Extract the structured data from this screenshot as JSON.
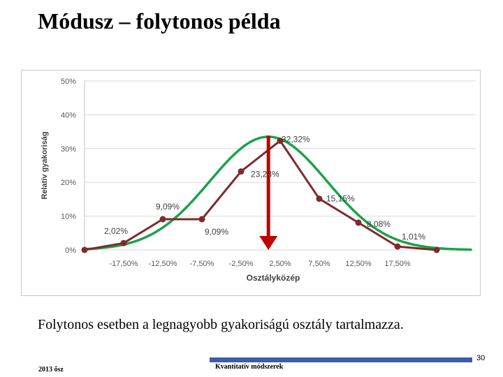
{
  "slide": {
    "title": "Módusz – folytonos példa",
    "caption": "Folytonos esetben a legnagyobb gyakoriságú osztály tartalmazza.",
    "page_number": "30",
    "footer_left": "2013 ősz",
    "footer_center": "Kvantitatív módszerek",
    "accent_color": "#3b5ea8"
  },
  "chart_data": {
    "type": "line",
    "ylabel": "Relatív gyakoriság",
    "xlabel": "Osztályközép",
    "ylim": [
      0,
      50
    ],
    "yticks": [
      "0%",
      "10%",
      "20%",
      "30%",
      "40%",
      "50%"
    ],
    "categories": [
      "-17,50%",
      "-12,50%",
      "-7,50%",
      "-2,50%",
      "2,50%",
      "7,50%",
      "12,50%",
      "17,50%"
    ],
    "grid": true,
    "legend": "none",
    "series": [
      {
        "color": "#7b2c2c",
        "points": [
          {
            "x": -22.5,
            "y": 0.0,
            "label": ""
          },
          {
            "x": -17.5,
            "y": 2.02,
            "label": "2,02%"
          },
          {
            "x": -12.5,
            "y": 9.09,
            "label": "9,09%"
          },
          {
            "x": -7.5,
            "y": 9.09,
            "label": "9,09%"
          },
          {
            "x": -2.5,
            "y": 23.23,
            "label": "23,23%"
          },
          {
            "x": 2.5,
            "y": 32.32,
            "label": "32,32%"
          },
          {
            "x": 7.5,
            "y": 15.15,
            "label": "15,15%"
          },
          {
            "x": 12.5,
            "y": 8.08,
            "label": "8,08%"
          },
          {
            "x": 17.5,
            "y": 1.01,
            "label": "1,01%"
          },
          {
            "x": 22.5,
            "y": 0.0,
            "label": ""
          }
        ]
      }
    ],
    "fitted_curve": {
      "color": "#1aa34a",
      "peak_x": 1.0,
      "peak_y": 33.5,
      "sigma": 7.5,
      "x_range": [
        -22.5,
        27.0
      ]
    },
    "mode_arrow": {
      "color": "#c00000",
      "x": 1.0,
      "from_y": 33.0,
      "to_y": 0.0
    }
  }
}
